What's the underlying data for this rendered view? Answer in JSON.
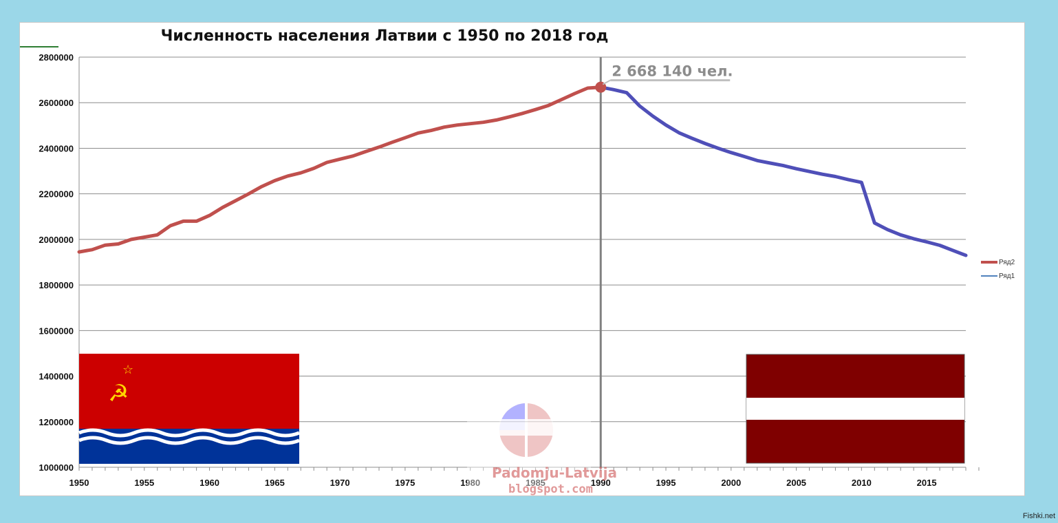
{
  "chart_data": {
    "type": "line",
    "title": "Численность населения Латвии с 1950 по 2018 год",
    "ylim": [
      1000000,
      2800000
    ],
    "yticks": [
      "2800000",
      "2600000",
      "2400000",
      "2200000",
      "2000000",
      "1800000",
      "1600000",
      "1400000",
      "1200000",
      "1000000"
    ],
    "ytick_values": [
      2800000,
      2600000,
      2400000,
      2200000,
      2000000,
      1800000,
      1600000,
      1400000,
      1200000,
      1000000
    ],
    "xlim": [
      1950,
      2018
    ],
    "xticks": [
      "1950",
      "1955",
      "1960",
      "1965",
      "1970",
      "1975",
      "1980",
      "1985",
      "1990",
      "1995",
      "2000",
      "2005",
      "2010",
      "2015"
    ],
    "xtick_values": [
      1950,
      1955,
      1960,
      1965,
      1970,
      1975,
      1980,
      1985,
      1990,
      1995,
      2000,
      2005,
      2010,
      2015
    ],
    "grid": true,
    "legend_position": "right",
    "series": [
      {
        "name": "Ряд2",
        "color": "#c0504d",
        "x": [
          1950,
          1951,
          1952,
          1953,
          1954,
          1955,
          1956,
          1957,
          1958,
          1959,
          1960,
          1961,
          1962,
          1963,
          1964,
          1965,
          1966,
          1967,
          1968,
          1969,
          1970,
          1971,
          1972,
          1973,
          1974,
          1975,
          1976,
          1977,
          1978,
          1979,
          1980,
          1981,
          1982,
          1983,
          1984,
          1985,
          1986,
          1987,
          1988,
          1989,
          1990
        ],
        "values": [
          1945000,
          1955000,
          1975000,
          1980000,
          2000000,
          2010000,
          2020000,
          2060000,
          2080000,
          2080000,
          2105000,
          2140000,
          2170000,
          2200000,
          2232000,
          2258000,
          2278000,
          2292000,
          2312000,
          2338000,
          2352000,
          2366000,
          2386000,
          2405000,
          2426000,
          2446000,
          2467000,
          2478000,
          2493000,
          2502000,
          2508000,
          2514000,
          2524000,
          2538000,
          2553000,
          2570000,
          2588000,
          2614000,
          2640000,
          2664000,
          2668140
        ]
      },
      {
        "name": "Ряд1",
        "color": "#4f4fb8",
        "legend_color": "#4f81bd",
        "x": [
          1990,
          1991,
          1992,
          1993,
          1994,
          1995,
          1996,
          1997,
          1998,
          1999,
          2000,
          2001,
          2002,
          2003,
          2004,
          2005,
          2006,
          2007,
          2008,
          2009,
          2010,
          2011,
          2012,
          2013,
          2014,
          2015,
          2016,
          2017,
          2018
        ],
        "values": [
          2668140,
          2657000,
          2644000,
          2585000,
          2541000,
          2502000,
          2468000,
          2444000,
          2421000,
          2400000,
          2381000,
          2364000,
          2346000,
          2335000,
          2324000,
          2310000,
          2298000,
          2286000,
          2276000,
          2262000,
          2250000,
          2072000,
          2043000,
          2020000,
          2003000,
          1989000,
          1974000,
          1952000,
          1930000
        ]
      }
    ],
    "annotation": {
      "x": 1990,
      "y": 2668140,
      "text": "2 668 140 чел."
    },
    "vertical_marker_x": 1990
  },
  "legend": {
    "items": [
      "Ряд2",
      "Ряд1"
    ]
  },
  "watermark": {
    "line1": "Padomju-Latvija",
    "line2": "blogspot.com"
  },
  "credit": "Fishki.net",
  "colors": {
    "background": "#9bd7e8",
    "soviet_flag_red": "#cc0000",
    "soviet_flag_blue": "#003399",
    "latvia_carmine": "#7f0000"
  }
}
